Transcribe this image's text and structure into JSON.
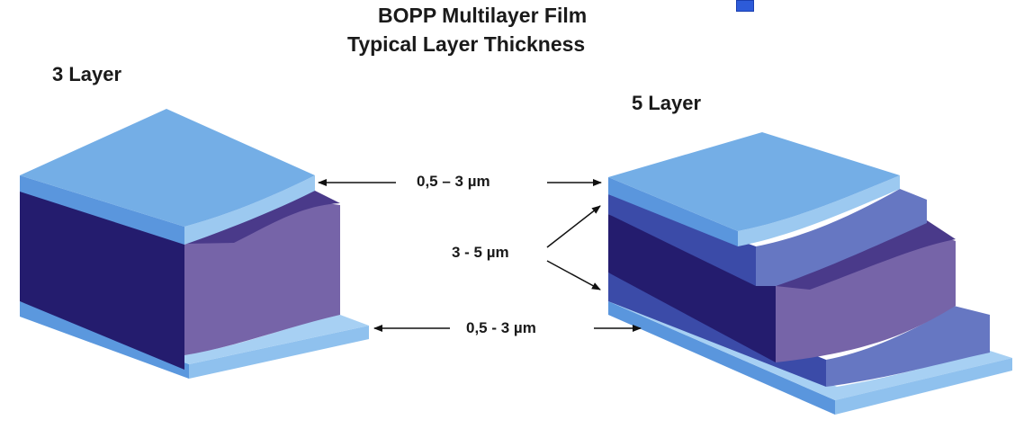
{
  "title_line1": "BOPP Multilayer Film",
  "title_line2": "Typical Layer Thickness",
  "left_label": "3 Layer",
  "right_label": "5 Layer",
  "dim_skin_top": "0,5 – 3 µm",
  "dim_tie": "3 - 5 µm",
  "dim_skin_bottom": "0,5 - 3 µm",
  "colors": {
    "skin_top": "#74aee6",
    "skin_front": "#5a96dd",
    "core_front": "#241c6e",
    "core_side": "#7664a8",
    "tie_front": "#3b4ba8",
    "tie_side": "#6677c2"
  }
}
